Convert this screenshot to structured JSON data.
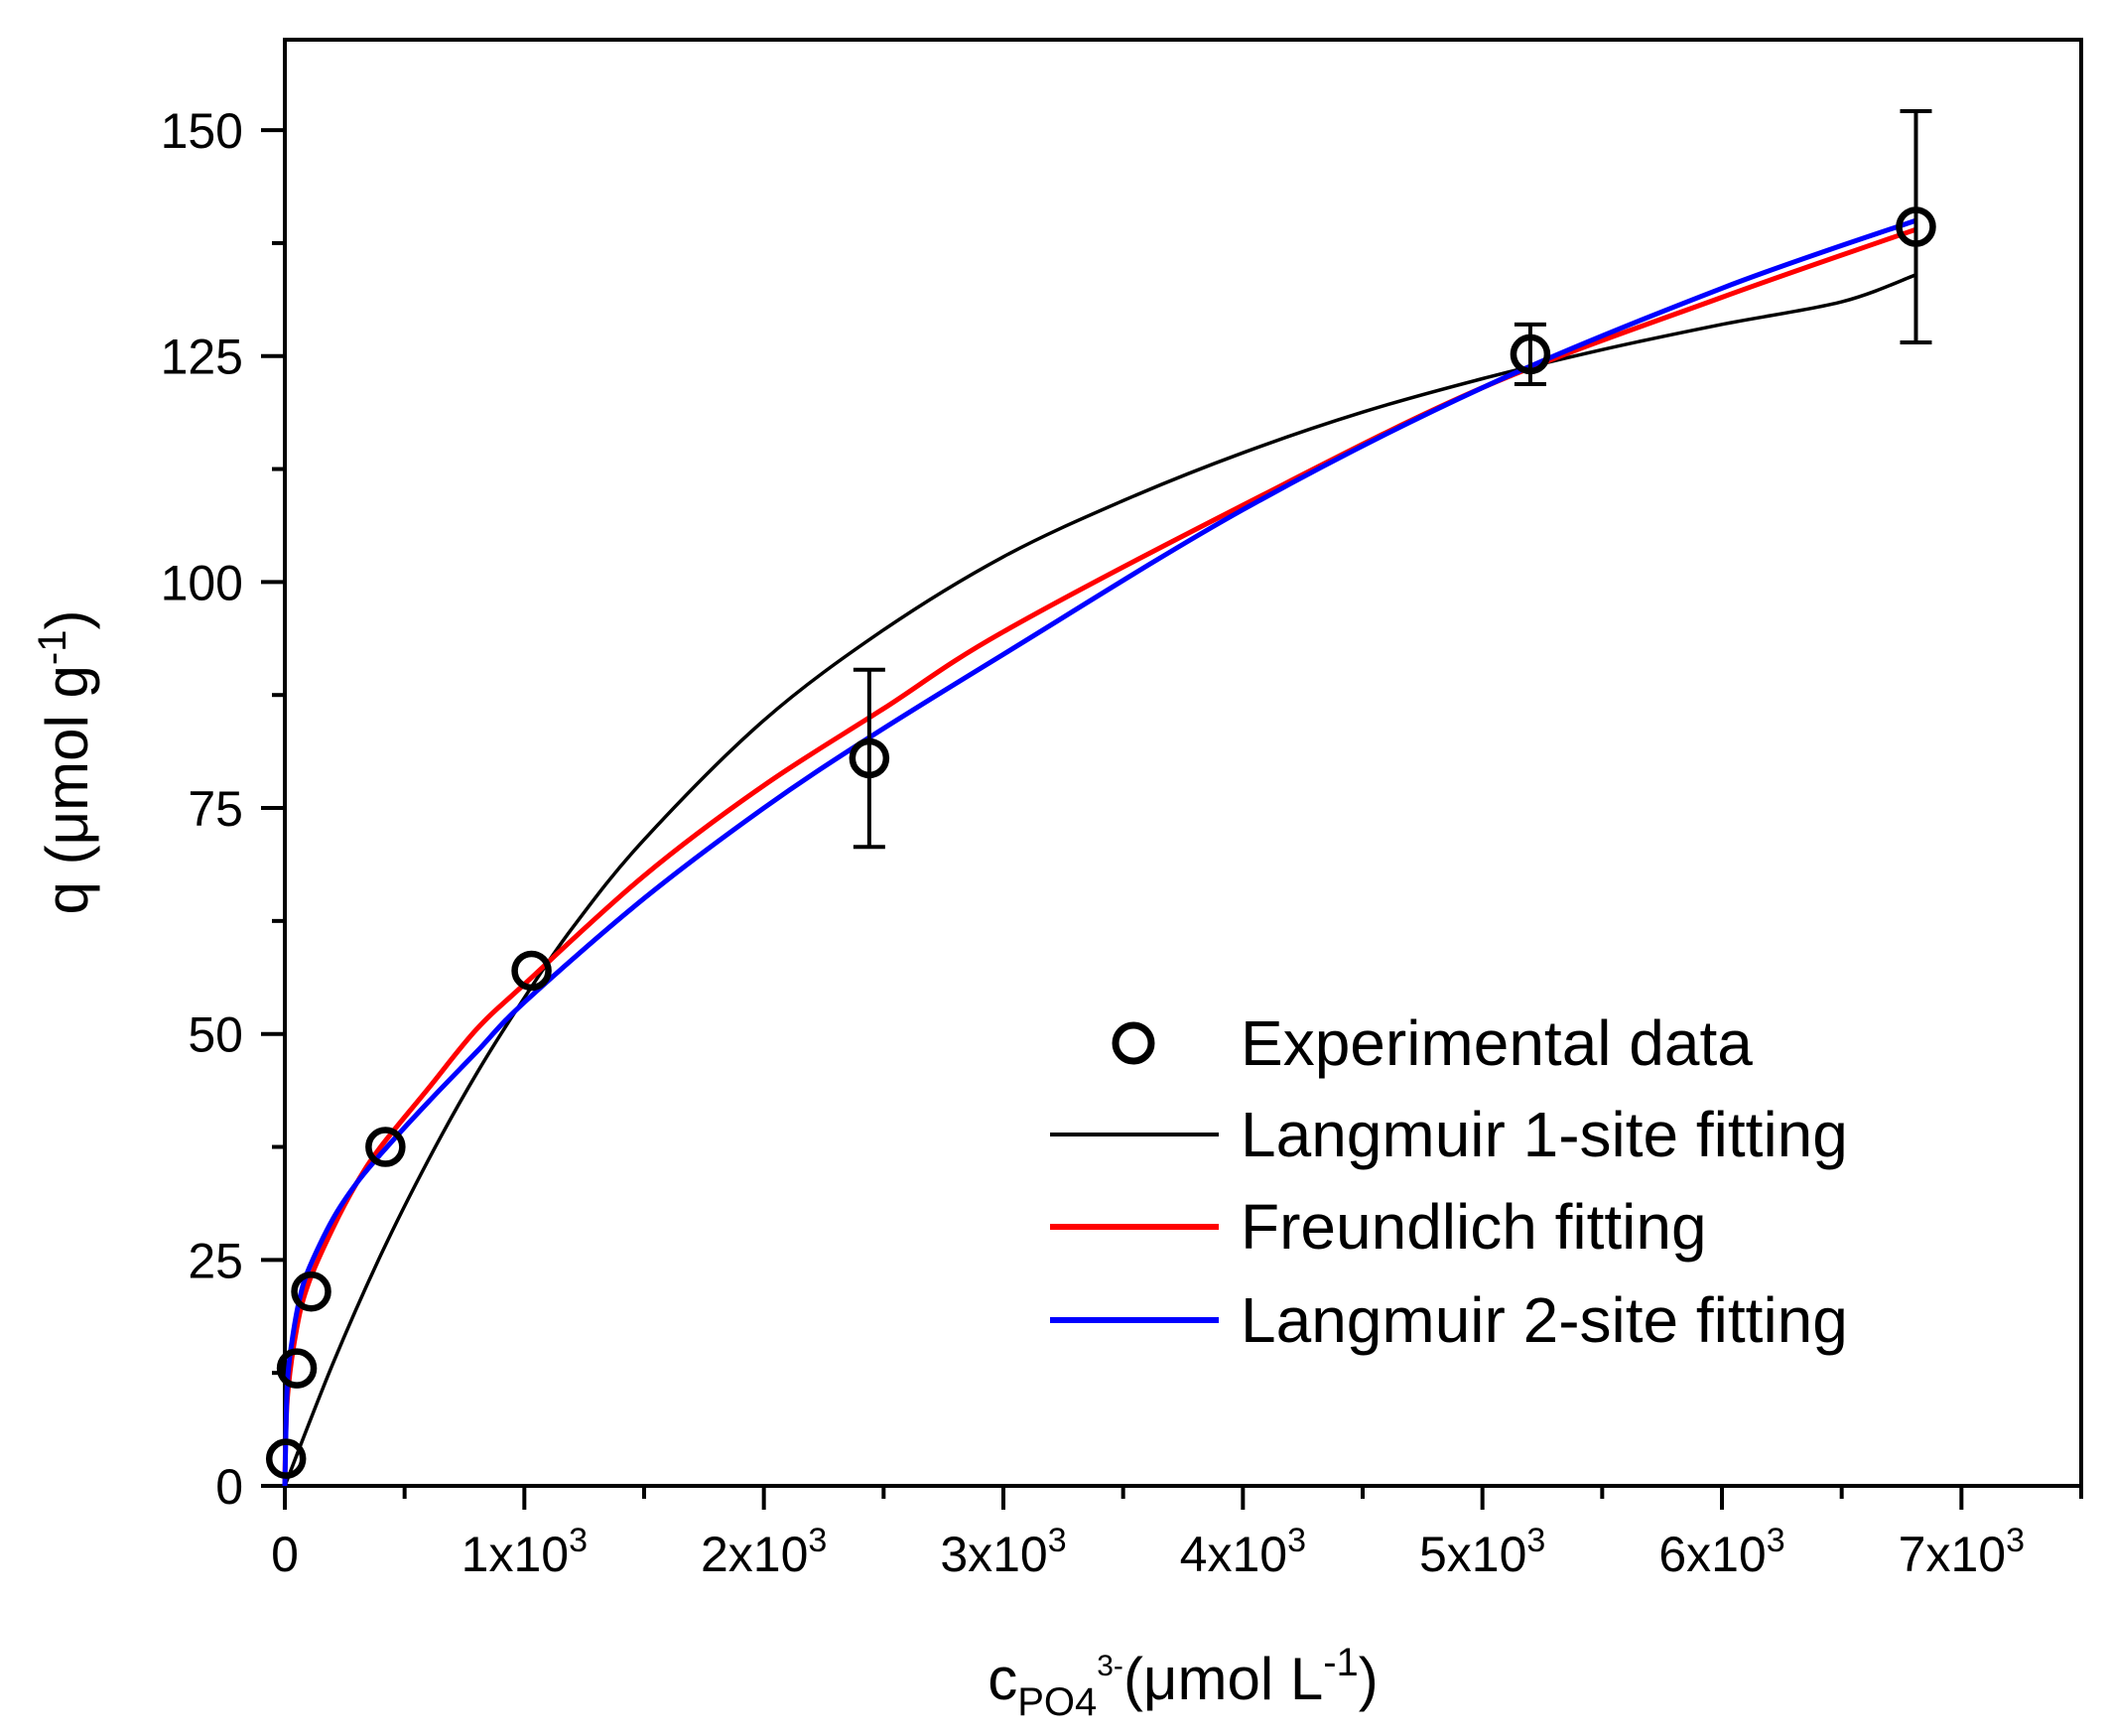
{
  "chart_data": {
    "type": "scatter",
    "title": "",
    "xlabel": {
      "main": "c",
      "sub": "PO4",
      "sup": "3-",
      "unit_open": "(μmol L",
      "unit_sup": "-1",
      "unit_close": ")"
    },
    "ylabel": {
      "main": "q (μmol g",
      "sup": "-1",
      "close": ")"
    },
    "xlim": [
      0,
      7500
    ],
    "ylim": [
      0,
      160
    ],
    "grid": false,
    "legend_position": "bottom-right",
    "x_ticks": [
      {
        "value": 0,
        "mantissa": "0",
        "exp": ""
      },
      {
        "value": 1000,
        "mantissa": "1x10",
        "exp": "3"
      },
      {
        "value": 2000,
        "mantissa": "2x10",
        "exp": "3"
      },
      {
        "value": 3000,
        "mantissa": "3x10",
        "exp": "3"
      },
      {
        "value": 4000,
        "mantissa": "4x10",
        "exp": "3"
      },
      {
        "value": 5000,
        "mantissa": "5x10",
        "exp": "3"
      },
      {
        "value": 6000,
        "mantissa": "6x10",
        "exp": "3"
      },
      {
        "value": 7000,
        "mantissa": "7x10",
        "exp": "3"
      }
    ],
    "x_minor_ticks": [
      500,
      1500,
      2500,
      3500,
      4500,
      5500,
      6500,
      7500
    ],
    "y_ticks": [
      {
        "value": 0,
        "label": "0"
      },
      {
        "value": 25,
        "label": "25"
      },
      {
        "value": 50,
        "label": "50"
      },
      {
        "value": 75,
        "label": "75"
      },
      {
        "value": 100,
        "label": "100"
      },
      {
        "value": 125,
        "label": "125"
      },
      {
        "value": 150,
        "label": "150"
      }
    ],
    "y_minor_ticks": [
      12.5,
      37.5,
      62.5,
      87.5,
      112.5,
      137.5
    ],
    "experimental": {
      "name": "Experimental data",
      "color": "#000000",
      "points": [
        {
          "x": 5,
          "y": 3,
          "err": 0
        },
        {
          "x": 50,
          "y": 13,
          "err": 0
        },
        {
          "x": 110,
          "y": 21.5,
          "err": 0
        },
        {
          "x": 420,
          "y": 37.5,
          "err": 0
        },
        {
          "x": 1030,
          "y": 57,
          "err": 0
        },
        {
          "x": 2440,
          "y": 80.5,
          "err": 9.8
        },
        {
          "x": 5200,
          "y": 125.2,
          "err": 3.3
        },
        {
          "x": 6810,
          "y": 139.3,
          "err": 12.8
        }
      ]
    },
    "series": [
      {
        "name": "Langmuir 1-site fitting",
        "color": "#000000",
        "x": [
          0,
          200,
          400,
          600,
          800,
          1000,
          1200,
          1500,
          2000,
          2500,
          3000,
          3500,
          4000,
          4500,
          5000,
          5500,
          6000,
          6500,
          6810
        ],
        "y": [
          0,
          13.5,
          25.5,
          36.1,
          45.6,
          54.0,
          61.7,
          71.5,
          84.7,
          94.7,
          102.8,
          109.0,
          114.3,
          118.8,
          122.5,
          125.7,
          128.5,
          131.0,
          134.0
        ]
      },
      {
        "name": "Freundlich fitting",
        "color": "#ff0000",
        "x": [
          0,
          10,
          50,
          100,
          200,
          300,
          400,
          600,
          800,
          1000,
          1500,
          2000,
          2500,
          3000,
          4000,
          5000,
          6000,
          6810
        ],
        "y": [
          0,
          9.5,
          17.5,
          22.5,
          28.5,
          33.5,
          37.5,
          44,
          50.5,
          55.5,
          67.5,
          77.5,
          86,
          94.5,
          108.5,
          121.5,
          131.5,
          139
        ]
      },
      {
        "name": "Langmuir 2-site fitting",
        "color": "#0000ff",
        "x": [
          0,
          10,
          30,
          60,
          100,
          200,
          300,
          420,
          600,
          800,
          1000,
          1500,
          2000,
          2440,
          3000,
          4000,
          5000,
          6000,
          6810
        ],
        "y": [
          0,
          11,
          16,
          20.5,
          24,
          29.5,
          33.5,
          37.3,
          42.5,
          48,
          53.5,
          65,
          75,
          82.8,
          92,
          108,
          121.5,
          132.5,
          140
        ]
      }
    ]
  }
}
